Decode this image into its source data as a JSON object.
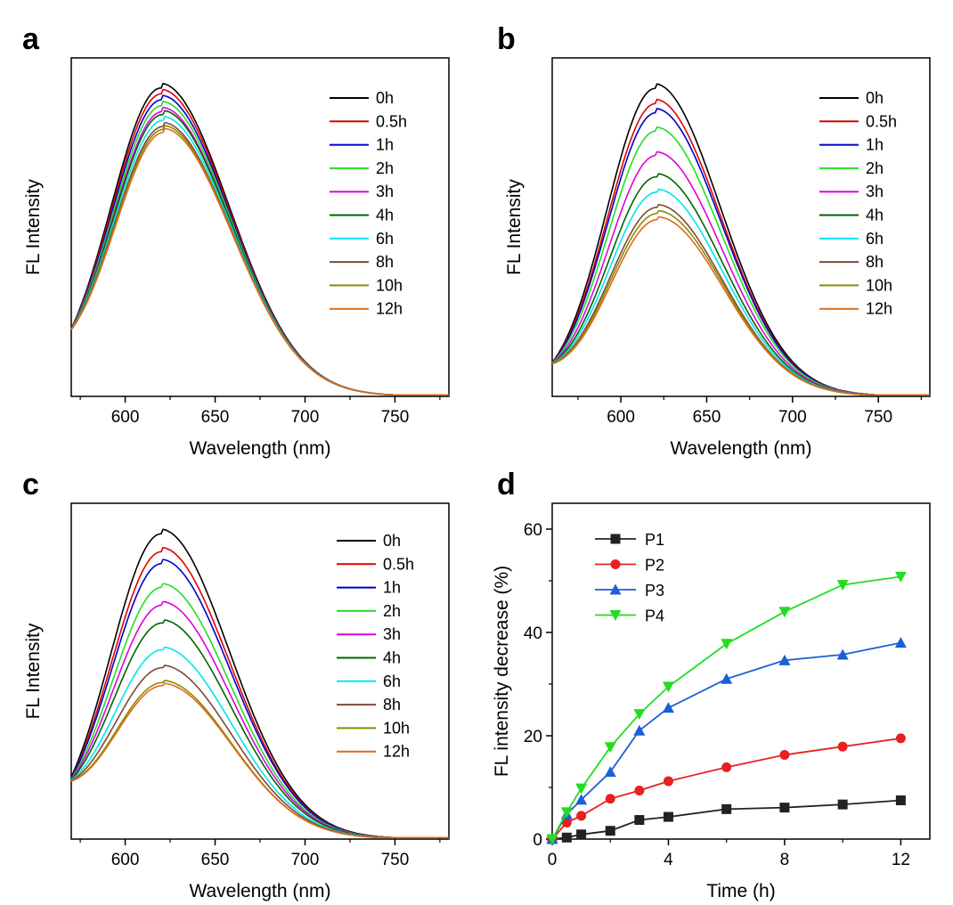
{
  "chart_data": [
    {
      "panel": "a",
      "type": "line",
      "xlabel": "Wavelength (nm)",
      "ylabel": "FL Intensity",
      "xlim": [
        570,
        780
      ],
      "xticks": [
        600,
        650,
        700,
        750
      ],
      "ylim": [
        0,
        1.1
      ],
      "grid": false,
      "legend_position": "top-right",
      "peak_nm": 620,
      "baseline_start": 0.22,
      "series": [
        {
          "name": "0h",
          "color": "#000000",
          "peak": 1.0
        },
        {
          "name": "0.5h",
          "color": "#e00000",
          "peak": 0.98
        },
        {
          "name": "1h",
          "color": "#0000c8",
          "peak": 0.96
        },
        {
          "name": "2h",
          "color": "#22dd22",
          "peak": 0.94
        },
        {
          "name": "3h",
          "color": "#e000e0",
          "peak": 0.92
        },
        {
          "name": "4h",
          "color": "#006400",
          "peak": 0.91
        },
        {
          "name": "6h",
          "color": "#00e5ee",
          "peak": 0.89
        },
        {
          "name": "8h",
          "color": "#7a4a3a",
          "peak": 0.87
        },
        {
          "name": "10h",
          "color": "#8b8b00",
          "peak": 0.86
        },
        {
          "name": "12h",
          "color": "#e06a1a",
          "peak": 0.85
        }
      ]
    },
    {
      "panel": "b",
      "type": "line",
      "xlabel": "Wavelength (nm)",
      "ylabel": "FL Intensity",
      "xlim": [
        560,
        780
      ],
      "xticks": [
        600,
        650,
        700,
        750
      ],
      "ylim": [
        0,
        1.1
      ],
      "grid": false,
      "legend_position": "top-right",
      "peak_nm": 620,
      "baseline_start": 0.11,
      "series": [
        {
          "name": "0h",
          "color": "#000000",
          "peak": 1.0
        },
        {
          "name": "0.5h",
          "color": "#e00000",
          "peak": 0.95
        },
        {
          "name": "1h",
          "color": "#0000c8",
          "peak": 0.92
        },
        {
          "name": "2h",
          "color": "#22dd22",
          "peak": 0.86
        },
        {
          "name": "3h",
          "color": "#e000e0",
          "peak": 0.78
        },
        {
          "name": "4h",
          "color": "#006400",
          "peak": 0.71
        },
        {
          "name": "6h",
          "color": "#00e5ee",
          "peak": 0.66
        },
        {
          "name": "8h",
          "color": "#7a4a3a",
          "peak": 0.61
        },
        {
          "name": "10h",
          "color": "#8b8b00",
          "peak": 0.59
        },
        {
          "name": "12h",
          "color": "#e06a1a",
          "peak": 0.57
        }
      ]
    },
    {
      "panel": "c",
      "type": "line",
      "xlabel": "Wavelength (nm)",
      "ylabel": "FL Intensity",
      "xlim": [
        570,
        780
      ],
      "xticks": [
        600,
        650,
        700,
        750
      ],
      "ylim": [
        0,
        1.1
      ],
      "grid": false,
      "legend_position": "top-right",
      "peak_nm": 620,
      "baseline_start": 0.2,
      "series": [
        {
          "name": "0h",
          "color": "#000000",
          "peak": 1.0
        },
        {
          "name": "0.5h",
          "color": "#e00000",
          "peak": 0.94
        },
        {
          "name": "1h",
          "color": "#0000c8",
          "peak": 0.9
        },
        {
          "name": "2h",
          "color": "#22dd22",
          "peak": 0.82
        },
        {
          "name": "3h",
          "color": "#e000e0",
          "peak": 0.76
        },
        {
          "name": "4h",
          "color": "#006400",
          "peak": 0.7
        },
        {
          "name": "6h",
          "color": "#00e5ee",
          "peak": 0.61
        },
        {
          "name": "8h",
          "color": "#7a4a3a",
          "peak": 0.55
        },
        {
          "name": "10h",
          "color": "#8b8b00",
          "peak": 0.5
        },
        {
          "name": "12h",
          "color": "#e06a1a",
          "peak": 0.49
        }
      ]
    },
    {
      "panel": "d",
      "type": "line",
      "xlabel": "Time (h)",
      "ylabel": "FL intensity decrease (%)",
      "xlim": [
        0,
        13
      ],
      "ylim": [
        0,
        65
      ],
      "xticks": [
        0,
        4,
        8,
        12
      ],
      "yticks": [
        0,
        20,
        40,
        60
      ],
      "grid": false,
      "legend_position": "top-left",
      "x": [
        0,
        0.5,
        1,
        2,
        3,
        4,
        6,
        8,
        10,
        12
      ],
      "series": [
        {
          "name": "P1",
          "color": "#222222",
          "marker": "square",
          "values": [
            0,
            0.3,
            0.9,
            1.6,
            3.7,
            4.3,
            5.8,
            6.1,
            6.7,
            7.5
          ]
        },
        {
          "name": "P2",
          "color": "#e82020",
          "marker": "circle",
          "values": [
            0,
            3.2,
            4.5,
            7.8,
            9.4,
            11.2,
            13.9,
            16.3,
            17.9,
            19.5
          ]
        },
        {
          "name": "P3",
          "color": "#1a5fd8",
          "marker": "triangle-up",
          "values": [
            0,
            4.8,
            7.6,
            13.0,
            21.0,
            25.4,
            31.0,
            34.6,
            35.7,
            38.0
          ]
        },
        {
          "name": "P4",
          "color": "#22dd22",
          "marker": "triangle-down",
          "values": [
            0,
            5.2,
            9.8,
            17.8,
            24.2,
            29.5,
            37.8,
            44.0,
            49.2,
            50.8
          ]
        }
      ]
    }
  ]
}
